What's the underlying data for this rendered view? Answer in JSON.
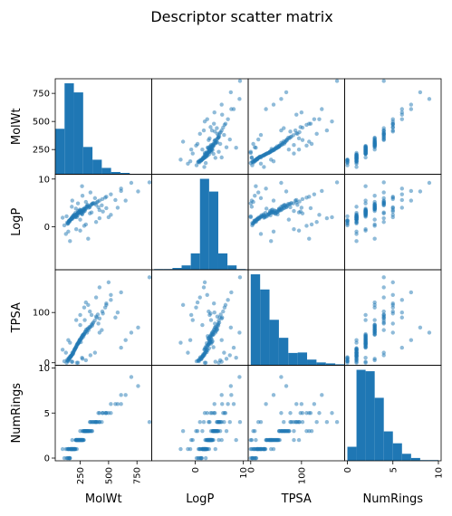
{
  "chart_data": {
    "type": "scatter",
    "title": "Descriptor scatter matrix",
    "variables": [
      "MolWt",
      "LogP",
      "TPSA",
      "NumRings"
    ],
    "ranges": {
      "MolWt": [
        30,
        880
      ],
      "LogP": [
        -9,
        11
      ],
      "TPSA": [
        -5,
        185
      ],
      "NumRings": [
        -0.3,
        10.3
      ]
    },
    "ticks": {
      "MolWt": [
        250,
        500,
        750
      ],
      "LogP": [
        0,
        10
      ],
      "TPSA": [
        0,
        100
      ],
      "NumRings": [
        0,
        5,
        10
      ]
    },
    "tick_labels": {
      "MolWt": [
        "250",
        "500",
        "750"
      ],
      "LogP": [
        "0",
        "10"
      ],
      "TPSA": [
        "0",
        "100"
      ],
      "NumRings": [
        "0",
        "5",
        "10"
      ]
    },
    "color": "#1f77b4",
    "diagonal": "histogram",
    "histograms": {
      "MolWt": {
        "edges": [
          30,
          112,
          194,
          276,
          358,
          440,
          522,
          604,
          686,
          768,
          850
        ],
        "counts": [
          100,
          200,
          180,
          60,
          32,
          14,
          5,
          3,
          1,
          1
        ]
      },
      "LogP": {
        "edges": [
          -8.5,
          -6.6,
          -4.7,
          -2.8,
          -0.9,
          1.0,
          2.9,
          4.8,
          6.7,
          8.6,
          10.5
        ],
        "counts": [
          2,
          2,
          5,
          12,
          45,
          250,
          215,
          45,
          12,
          2
        ]
      },
      "TPSA": {
        "edges": [
          0,
          18.5,
          37,
          55.5,
          74,
          92.5,
          111,
          129.5,
          148,
          166.5,
          185
        ],
        "counts": [
          192,
          160,
          96,
          58,
          26,
          27,
          12,
          6,
          4,
          2
        ]
      },
      "NumRings": {
        "edges": [
          0,
          1,
          2,
          3,
          4,
          5,
          6,
          7,
          8,
          9,
          10
        ],
        "counts": [
          20,
          130,
          128,
          90,
          42,
          25,
          10,
          4,
          1,
          1
        ]
      }
    },
    "points": [
      [
        212,
        3.8,
        31,
        2
      ],
      [
        245,
        2.9,
        45,
        2
      ],
      [
        180,
        2.1,
        20,
        1
      ],
      [
        310,
        4.2,
        60,
        3
      ],
      [
        165,
        1.5,
        12,
        1
      ],
      [
        278,
        3.1,
        52,
        2
      ],
      [
        198,
        2.4,
        26,
        1
      ],
      [
        356,
        4.8,
        74,
        3
      ],
      [
        150,
        1.2,
        8,
        1
      ],
      [
        230,
        3.3,
        38,
        2
      ],
      [
        420,
        5.5,
        88,
        4
      ],
      [
        188,
        2.0,
        18,
        1
      ],
      [
        265,
        2.7,
        49,
        2
      ],
      [
        302,
        3.9,
        66,
        3
      ],
      [
        142,
        0.8,
        3,
        0
      ],
      [
        219,
        2.6,
        35,
        2
      ],
      [
        390,
        4.6,
        92,
        4
      ],
      [
        175,
        1.9,
        15,
        1
      ],
      [
        256,
        3.5,
        41,
        2
      ],
      [
        334,
        4.1,
        70,
        3
      ],
      [
        205,
        2.2,
        28,
        1
      ],
      [
        288,
        3.6,
        58,
        3
      ],
      [
        160,
        1.4,
        10,
        0
      ],
      [
        242,
        3.0,
        44,
        2
      ],
      [
        470,
        6.1,
        110,
        5
      ],
      [
        195,
        2.3,
        24,
        1
      ],
      [
        271,
        3.2,
        54,
        2
      ],
      [
        318,
        4.4,
        68,
        3
      ],
      [
        135,
        0.9,
        6,
        1
      ],
      [
        226,
        2.8,
        37,
        2
      ],
      [
        365,
        5.0,
        80,
        4
      ],
      [
        182,
        1.7,
        17,
        1
      ],
      [
        249,
        3.4,
        47,
        2
      ],
      [
        296,
        3.7,
        62,
        3
      ],
      [
        158,
        1.1,
        11,
        0
      ],
      [
        215,
        2.5,
        32,
        2
      ],
      [
        405,
        5.3,
        96,
        4
      ],
      [
        172,
        1.6,
        14,
        1
      ],
      [
        260,
        3.3,
        50,
        2
      ],
      [
        342,
        4.5,
        72,
        3
      ],
      [
        208,
        2.9,
        29,
        1
      ],
      [
        284,
        3.8,
        56,
        3
      ],
      [
        148,
        1.0,
        9,
        1
      ],
      [
        238,
        3.1,
        42,
        2
      ],
      [
        520,
        6.8,
        125,
        6
      ],
      [
        192,
        2.2,
        22,
        1
      ],
      [
        268,
        2.6,
        53,
        2
      ],
      [
        324,
        4.0,
        65,
        3
      ],
      [
        138,
        0.6,
        4,
        0
      ],
      [
        222,
        2.7,
        36,
        2
      ],
      [
        378,
        4.9,
        84,
        4
      ],
      [
        178,
        1.8,
        16,
        1
      ],
      [
        252,
        3.2,
        46,
        2
      ],
      [
        292,
        3.9,
        61,
        3
      ],
      [
        154,
        1.3,
        7,
        0
      ],
      [
        228,
        2.4,
        39,
        2
      ],
      [
        445,
        5.8,
        102,
        5
      ],
      [
        185,
        2.0,
        19,
        1
      ],
      [
        274,
        3.5,
        55,
        2
      ],
      [
        350,
        4.7,
        76,
        3
      ],
      [
        210,
        2.1,
        30,
        2
      ],
      [
        282,
        3.4,
        57,
        2
      ],
      [
        162,
        1.5,
        13,
        1
      ],
      [
        236,
        2.9,
        40,
        2
      ],
      [
        610,
        7.5,
        140,
        7
      ],
      [
        200,
        2.6,
        25,
        1
      ],
      [
        262,
        3.0,
        51,
        2
      ],
      [
        306,
        4.3,
        63,
        3
      ],
      [
        144,
        0.7,
        5,
        1
      ],
      [
        218,
        2.3,
        33,
        2
      ],
      [
        395,
        5.1,
        90,
        4
      ],
      [
        170,
        1.7,
        14,
        1
      ],
      [
        246,
        3.6,
        43,
        2
      ],
      [
        314,
        4.6,
        67,
        3
      ],
      [
        152,
        1.2,
        8,
        0
      ],
      [
        232,
        3.0,
        38,
        2
      ],
      [
        480,
        6.3,
        115,
        5
      ],
      [
        190,
        2.4,
        21,
        1
      ],
      [
        276,
        3.7,
        56,
        3
      ],
      [
        330,
        4.2,
        71,
        3
      ],
      [
        203,
        2.0,
        27,
        1
      ],
      [
        258,
        2.8,
        48,
        2
      ],
      [
        168,
        1.6,
        12,
        1
      ],
      [
        240,
        3.2,
        41,
        2
      ],
      [
        360,
        4.8,
        78,
        4
      ],
      [
        124,
        -1.5,
        20,
        1
      ],
      [
        300,
        0.5,
        120,
        3
      ],
      [
        420,
        1.8,
        150,
        4
      ],
      [
        250,
        -0.8,
        95,
        2
      ],
      [
        520,
        2.5,
        135,
        5
      ],
      [
        180,
        5.5,
        2,
        2
      ],
      [
        270,
        6.5,
        8,
        3
      ],
      [
        340,
        7.2,
        15,
        4
      ],
      [
        230,
        4.9,
        0,
        2
      ],
      [
        610,
        8.0,
        30,
        6
      ],
      [
        700,
        9.2,
        60,
        9
      ],
      [
        860,
        9.3,
        170,
        4
      ],
      [
        320,
        -2.5,
        115,
        3
      ],
      [
        160,
        -3.0,
        40,
        1
      ],
      [
        450,
        3.2,
        98,
        5
      ],
      [
        390,
        1.0,
        130,
        4
      ],
      [
        285,
        0.2,
        110,
        3
      ],
      [
        215,
        -0.5,
        85,
        2
      ],
      [
        580,
        4.0,
        100,
        6
      ],
      [
        650,
        5.5,
        45,
        7
      ],
      [
        95,
        1.9,
        26,
        1
      ],
      [
        110,
        0.3,
        3,
        0
      ],
      [
        130,
        2.2,
        0,
        0
      ],
      [
        145,
        -1.0,
        45,
        1
      ],
      [
        760,
        7.4,
        70,
        8
      ],
      [
        500,
        2.0,
        160,
        5
      ],
      [
        420,
        3.5,
        60,
        5
      ],
      [
        380,
        6.0,
        20,
        4
      ],
      [
        250,
        1.5,
        75,
        3
      ],
      [
        300,
        5.2,
        5,
        3
      ],
      [
        266,
        8.5,
        10,
        2
      ],
      [
        176,
        4.2,
        2,
        1
      ],
      [
        220,
        2.0,
        0,
        1
      ],
      [
        350,
        3.0,
        95,
        4
      ],
      [
        440,
        4.5,
        65,
        4
      ],
      [
        290,
        3.3,
        85,
        3
      ],
      [
        335,
        2.8,
        102,
        4
      ],
      [
        410,
        4.1,
        78,
        5
      ],
      [
        560,
        5.6,
        90,
        6
      ],
      [
        480,
        3.9,
        118,
        5
      ]
    ]
  }
}
